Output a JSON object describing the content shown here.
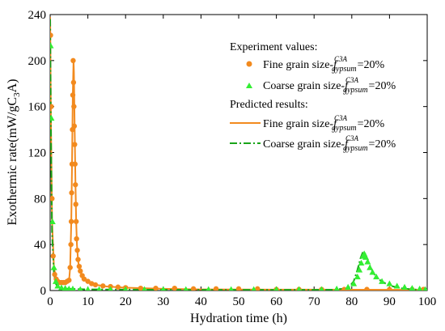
{
  "chart_data": {
    "type": "line",
    "xlabel": "Hydration time (h)",
    "ylabel": "Exothermic rate(mW/gC3A)",
    "ylabel_parts": {
      "main": "Exothermic rate(mW/gC",
      "sub": "3",
      "end": "A)"
    },
    "xlim": [
      0,
      100
    ],
    "ylim": [
      0,
      240
    ],
    "xticks": [
      0,
      10,
      20,
      30,
      40,
      50,
      60,
      70,
      80,
      90,
      100
    ],
    "yticks": [
      0,
      40,
      80,
      120,
      160,
      200,
      240
    ],
    "grid": false,
    "legend_position": "top-right",
    "legend": {
      "experiment_header": "Experiment values:",
      "predicted_header": "Predicted results:",
      "label_prefix_fine": "Fine grain size-",
      "label_prefix_coarse": "Coarse grain size-",
      "f_symbol": "f",
      "f_superscript": "C3A",
      "f_subscript": "gypsum",
      "label_suffix": "=20%"
    },
    "colors": {
      "fine": "#f28a1e",
      "coarse": "#1aa51a",
      "coarse_marker": "#33ee33"
    },
    "series": [
      {
        "name": "Fine grain size-f gypsum C3A =20% (experiment)",
        "kind": "scatter",
        "marker": "circle",
        "color_key": "fine",
        "x": [
          0.1,
          0.3,
          0.5,
          0.8,
          1.2,
          1.6,
          2.0,
          2.5,
          3.0,
          3.5,
          4.0,
          4.5,
          5.0,
          5.3,
          5.5,
          5.6,
          5.7,
          5.8,
          5.9,
          6.0,
          6.1,
          6.2,
          6.3,
          6.4,
          6.5,
          6.6,
          6.7,
          6.8,
          6.9,
          7.0,
          7.2,
          7.4,
          7.7,
          8.0,
          8.5,
          9.0,
          10.0,
          11.0,
          12.0,
          14.0,
          16.0,
          18.0,
          20.0,
          24.0,
          28.0,
          33.0,
          38.0,
          44.0,
          50.0,
          55.0,
          60.0,
          66.0,
          72.0,
          78.0,
          84.0,
          90.0,
          96.0,
          99.0
        ],
        "y": [
          222,
          160,
          80,
          30,
          14,
          10,
          8,
          7,
          7,
          7,
          7,
          8,
          9,
          20,
          40,
          60,
          85,
          110,
          140,
          170,
          200,
          181,
          160,
          143,
          127,
          110,
          92,
          75,
          60,
          45,
          35,
          27,
          21,
          17,
          13,
          10,
          8,
          6,
          5,
          4,
          3.5,
          3,
          2.5,
          2,
          2,
          2,
          1.5,
          1.5,
          1.5,
          1.5,
          1,
          1,
          1,
          1,
          1,
          1,
          1,
          1
        ]
      },
      {
        "name": "Coarse grain size-f gypsum C3A =20% (experiment)",
        "kind": "scatter",
        "marker": "triangle",
        "color_key": "coarse_marker",
        "x": [
          0.1,
          0.3,
          0.6,
          1.0,
          1.5,
          2.0,
          3.0,
          4.0,
          5.0,
          6.0,
          8.0,
          10.0,
          13.0,
          16.0,
          20.0,
          25.0,
          30.0,
          36.0,
          42.0,
          48.0,
          54.0,
          60.0,
          66.0,
          72.0,
          76.0,
          79.0,
          80.5,
          81.5,
          82.0,
          82.5,
          83.0,
          83.3,
          83.7,
          84.2,
          84.8,
          85.5,
          86.5,
          88.0,
          90.0,
          92.0,
          94.0,
          96.0,
          98.0,
          99.5
        ],
        "y": [
          213,
          150,
          60,
          20,
          8,
          4,
          2.5,
          2,
          1.5,
          1.5,
          1,
          1,
          1,
          1,
          1,
          1,
          1,
          1,
          1,
          1,
          1,
          1,
          1,
          1,
          1.5,
          3,
          6,
          12,
          18,
          24,
          30,
          32,
          29,
          25,
          20,
          16,
          12,
          8,
          6,
          4,
          3,
          2,
          1.5,
          1
        ]
      },
      {
        "name": "Fine grain size-f gypsum C3A =20% (predicted)",
        "kind": "line",
        "dash": "solid",
        "color_key": "fine",
        "x": [
          0,
          0.2,
          0.5,
          1,
          1.5,
          2,
          3,
          4,
          5,
          5.3,
          5.6,
          5.8,
          6.0,
          6.2,
          6.3,
          6.5,
          6.7,
          6.9,
          7.1,
          7.4,
          7.8,
          8.3,
          9,
          10,
          12,
          15,
          20,
          30,
          40,
          60,
          80,
          100
        ],
        "y": [
          238,
          150,
          60,
          20,
          12,
          9,
          7,
          7,
          8,
          20,
          60,
          110,
          170,
          200,
          190,
          140,
          95,
          60,
          40,
          26,
          18,
          14,
          10,
          8,
          5,
          3.5,
          2.5,
          1.5,
          1,
          0.8,
          0.7,
          0.6
        ]
      },
      {
        "name": "Coarse grain size-f gypsum C3A =20% (predicted)",
        "kind": "line",
        "dash": "dashdot",
        "color_key": "coarse",
        "x": [
          0,
          0.2,
          0.5,
          1,
          1.5,
          2,
          3,
          5,
          10,
          20,
          40,
          60,
          75,
          79,
          80.5,
          81.5,
          82.3,
          83.0,
          83.6,
          84.3,
          85,
          86,
          87.5,
          89,
          91,
          93,
          96,
          100
        ],
        "y": [
          236,
          140,
          50,
          15,
          6,
          3,
          2,
          1.5,
          1,
          0.8,
          0.6,
          0.6,
          0.7,
          2,
          8,
          18,
          28,
          34,
          32,
          26,
          20,
          14,
          9,
          6,
          3.5,
          2,
          1,
          0.5
        ]
      }
    ]
  }
}
